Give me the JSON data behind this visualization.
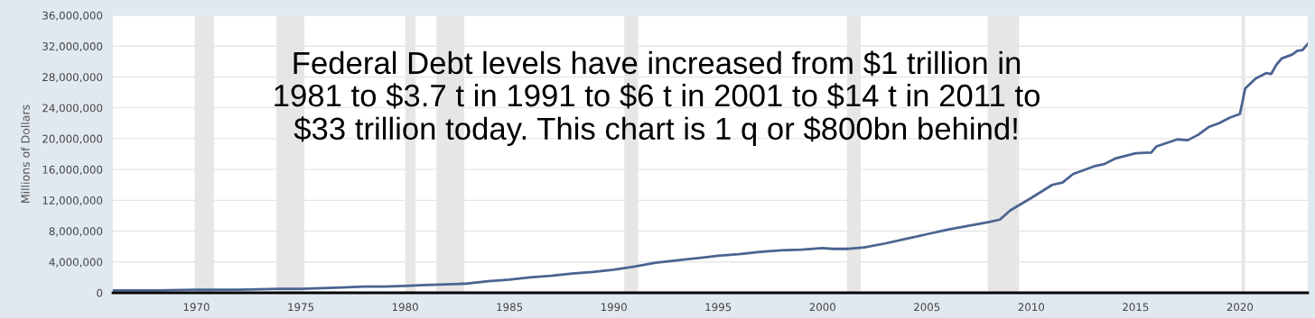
{
  "chart_data": {
    "type": "line",
    "ylabel": "Millions of Dollars",
    "annotations": [
      "Federal Debt levels have increased from $1 trillion in\n1981 to $3.7 t in 1991 to $6 t in 2001 to $14 t in 2011 to\n$33 trillion today. This chart is 1 q or $800bn behind!"
    ],
    "x": [
      "1966-01",
      "1968-01",
      "1970-01",
      "1972-01",
      "1974-01",
      "1975-01",
      "1976-01",
      "1977-01",
      "1978-01",
      "1979-01",
      "1980-01",
      "1981-01",
      "1982-01",
      "1983-01",
      "1984-01",
      "1985-01",
      "1986-01",
      "1987-01",
      "1988-01",
      "1989-01",
      "1990-01",
      "1991-01",
      "1992-01",
      "1993-01",
      "1994-01",
      "1995-01",
      "1996-01",
      "1997-01",
      "1998-01",
      "1999-01",
      "2000-01",
      "2000-07",
      "2001-04",
      "2002-01",
      "2003-01",
      "2004-01",
      "2005-01",
      "2006-01",
      "2007-01",
      "2008-01",
      "2008-07",
      "2009-01",
      "2010-01",
      "2011-01",
      "2011-07",
      "2012-01",
      "2013-01",
      "2013-07",
      "2014-01",
      "2015-01",
      "2015-10",
      "2016-01",
      "2017-01",
      "2017-07",
      "2018-01",
      "2018-07",
      "2019-01",
      "2019-07",
      "2020-01",
      "2020-04",
      "2020-10",
      "2021-04",
      "2021-07",
      "2021-10",
      "2022-01",
      "2022-07",
      "2022-10",
      "2023-01",
      "2023-04"
    ],
    "series": [
      {
        "color": "#4a6491",
        "values": [
          300000,
          300000,
          400000,
          400000,
          500000,
          500000,
          600000,
          700000,
          800000,
          800000,
          900000,
          1000000,
          1100000,
          1200000,
          1500000,
          1700000,
          2000000,
          2200000,
          2500000,
          2700000,
          3000000,
          3400000,
          3900000,
          4200000,
          4500000,
          4800000,
          5000000,
          5300000,
          5500000,
          5600000,
          5800000,
          5700000,
          5700000,
          5900000,
          6400000,
          7000000,
          7600000,
          8200000,
          8700000,
          9200000,
          9500000,
          10700000,
          12300000,
          14000000,
          14300000,
          15400000,
          16400000,
          16700000,
          17400000,
          18100000,
          18200000,
          19000000,
          19900000,
          19800000,
          20500000,
          21500000,
          22000000,
          22700000,
          23200000,
          26500000,
          27800000,
          28500000,
          28400000,
          29600000,
          30400000,
          30900000,
          31400000,
          31500000,
          32300000
        ]
      }
    ],
    "xlim": [
      "1966-01",
      "2023-04"
    ],
    "xticks": [
      "1970",
      "1975",
      "1980",
      "1985",
      "1990",
      "1995",
      "2000",
      "2005",
      "2010",
      "2015",
      "2020"
    ],
    "ylim": [
      0,
      36000000
    ],
    "yticks": [
      {
        "value": 0,
        "label": "0"
      },
      {
        "value": 4000000,
        "label": "4,000,000"
      },
      {
        "value": 8000000,
        "label": "8,000,000"
      },
      {
        "value": 12000000,
        "label": "12,000,000"
      },
      {
        "value": 16000000,
        "label": "16,000,000"
      },
      {
        "value": 20000000,
        "label": "20,000,000"
      },
      {
        "value": 24000000,
        "label": "24,000,000"
      },
      {
        "value": 28000000,
        "label": "28,000,000"
      },
      {
        "value": 32000000,
        "label": "32,000,000"
      },
      {
        "value": 36000000,
        "label": "36,000,000"
      }
    ],
    "bands": [
      {
        "axis": "x",
        "from": "1969-12",
        "to": "1970-11",
        "color": "#e6e6e6"
      },
      {
        "axis": "x",
        "from": "1973-11",
        "to": "1975-03",
        "color": "#e6e6e6"
      },
      {
        "axis": "x",
        "from": "1980-01",
        "to": "1980-07",
        "color": "#e6e6e6"
      },
      {
        "axis": "x",
        "from": "1981-07",
        "to": "1982-11",
        "color": "#e6e6e6"
      },
      {
        "axis": "x",
        "from": "1990-07",
        "to": "1991-03",
        "color": "#e6e6e6"
      },
      {
        "axis": "x",
        "from": "2001-03",
        "to": "2001-11",
        "color": "#e6e6e6"
      },
      {
        "axis": "x",
        "from": "2007-12",
        "to": "2009-06",
        "color": "#e6e6e6"
      },
      {
        "axis": "x",
        "from": "2020-02",
        "to": "2020-04",
        "color": "#e6e6e6"
      }
    ],
    "grid": "y",
    "marker": "none",
    "line_style": "solid"
  }
}
